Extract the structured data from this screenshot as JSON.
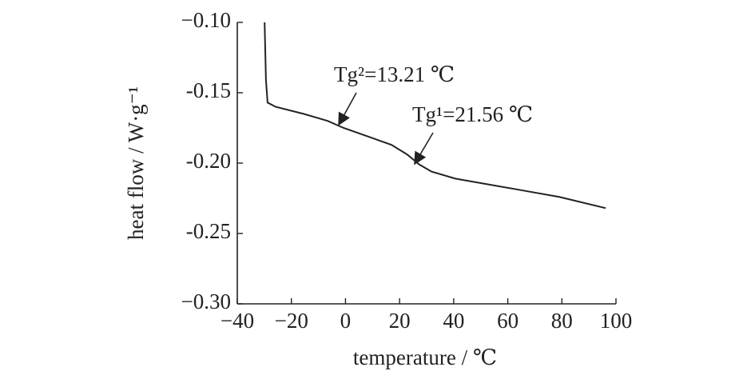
{
  "chart_data": {
    "type": "line",
    "xlabel": "temperature / ℃",
    "ylabel": "heat flow / W·g⁻¹",
    "x": [
      -29.9,
      -29.4,
      -28.8,
      -25.8,
      -15.5,
      -6.6,
      -0.7,
      8.2,
      17.0,
      22.9,
      27.3,
      31.8,
      40.6,
      64.3,
      79.0,
      96.2
    ],
    "series": [
      {
        "color": "#222222",
        "values": [
          -0.1,
          -0.141,
          -0.157,
          -0.16,
          -0.165,
          -0.17,
          -0.175,
          -0.181,
          -0.187,
          -0.194,
          -0.201,
          -0.206,
          -0.211,
          -0.219,
          -0.224,
          -0.232
        ]
      }
    ],
    "xlim": [
      -40,
      100
    ],
    "xticks": [
      {
        "value": -40,
        "label": "−40"
      },
      {
        "value": -20,
        "label": "−20"
      },
      0,
      20,
      40,
      60,
      80,
      100
    ],
    "ylim": [
      -0.3,
      -0.1
    ],
    "yticks": [
      {
        "value": -0.3,
        "label": "−0.30"
      },
      {
        "value": -0.25,
        "label": "-0.25"
      },
      {
        "value": -0.2,
        "label": "-0.20"
      },
      {
        "value": -0.15,
        "label": "-0.15"
      },
      {
        "value": -0.1,
        "label": "−0.10"
      }
    ],
    "annotations": [
      "Tg²=13.21 ℃",
      "Tg¹=21.56 ℃"
    ],
    "grid": false
  }
}
